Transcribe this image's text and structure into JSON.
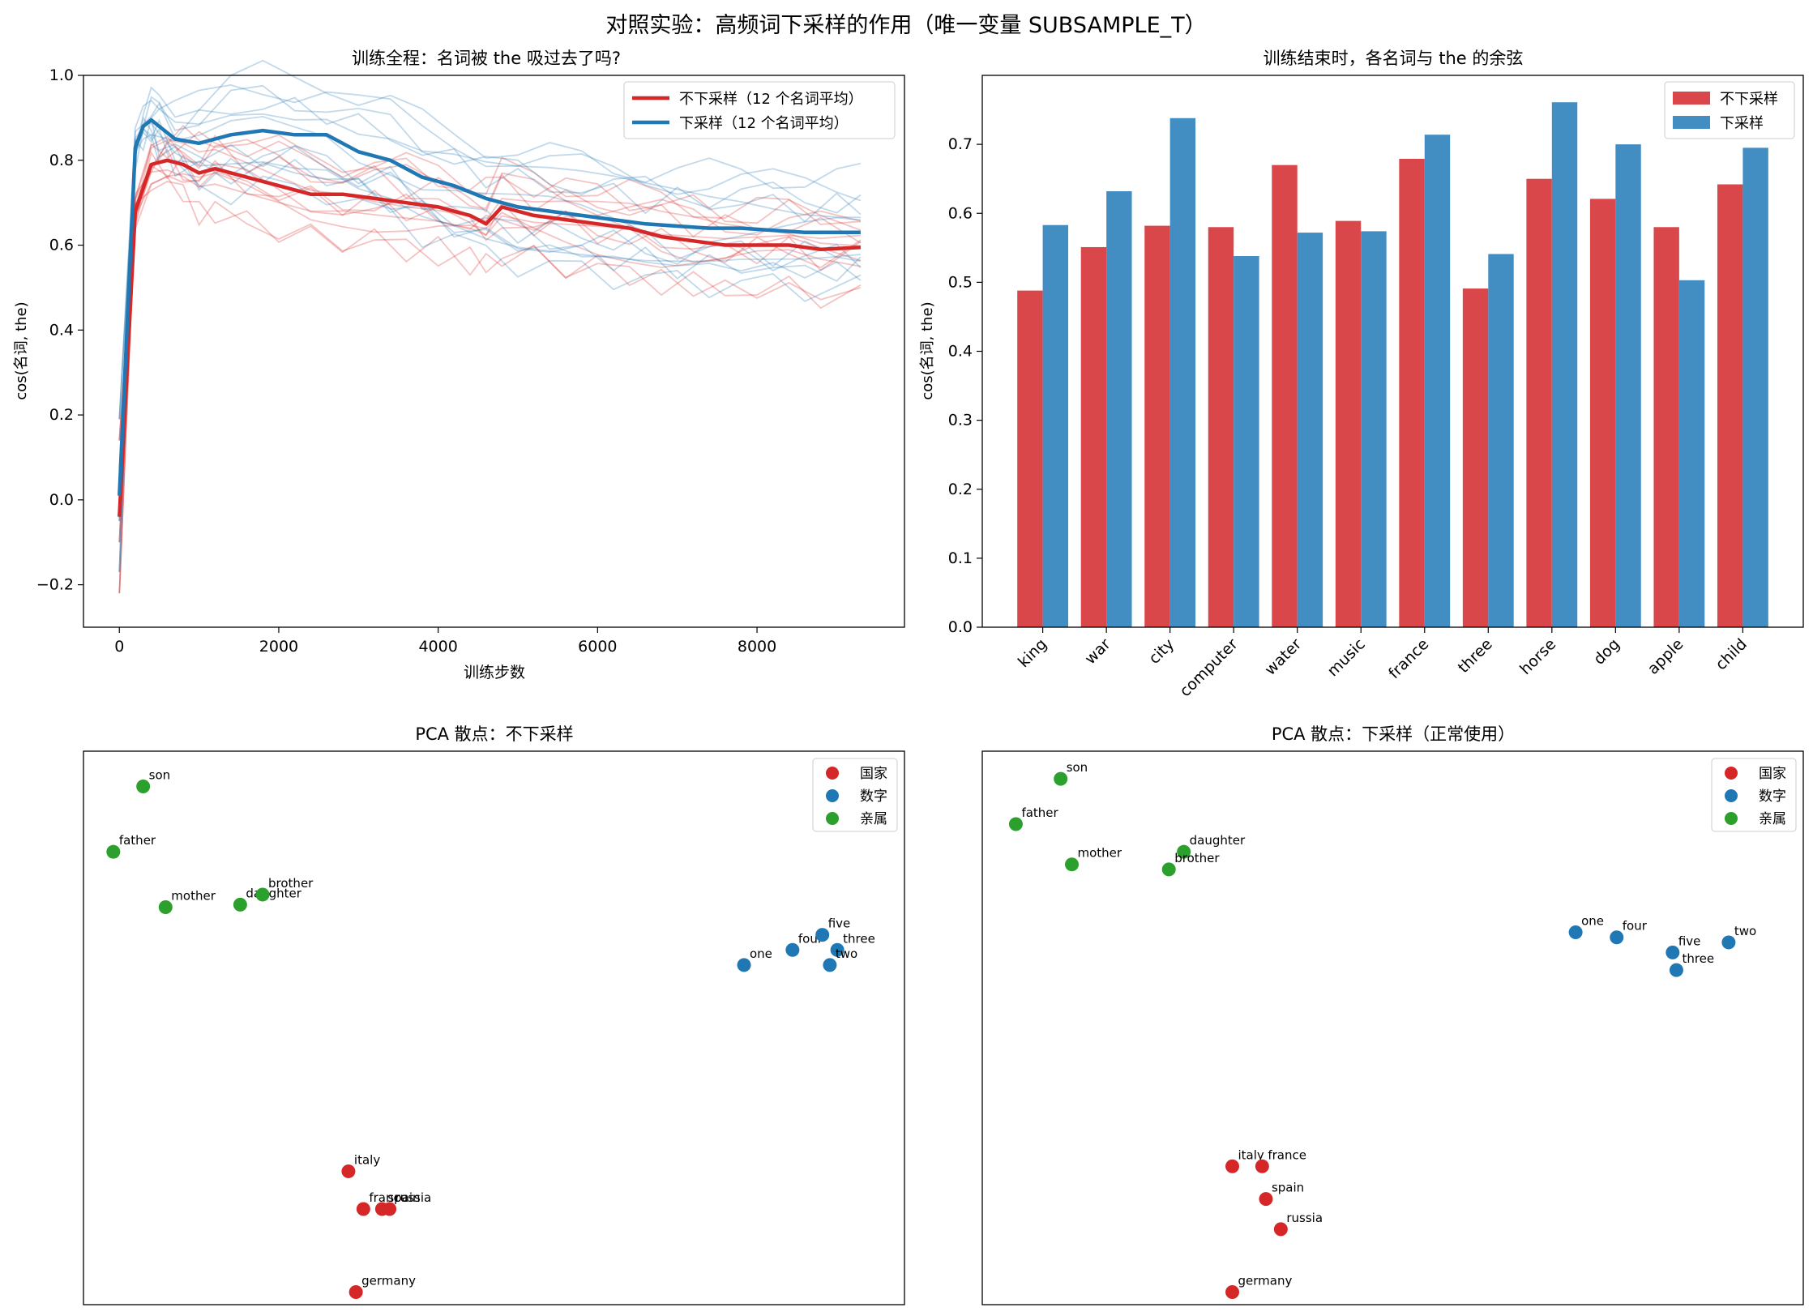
{
  "suptitle": "对照实验：高频词下采样的作用（唯一变量 SUBSAMPLE_T）",
  "colors": {
    "no_subsample": "#d62728",
    "subsample": "#1f77b4",
    "bar_no_subsample": "#d9474a",
    "bar_subsample": "#428dc2",
    "country": "#d62728",
    "number": "#1f77b4",
    "kin": "#2ca02c"
  },
  "chart_data": [
    {
      "type": "line",
      "title": "训练全程：名词被 the 吸过去了吗?",
      "xlabel": "训练步数",
      "ylabel": "cos(名词, the)",
      "xlim": [
        -450,
        9850
      ],
      "ylim": [
        -0.3,
        1.0
      ],
      "xticks": [
        0,
        2000,
        4000,
        6000,
        8000
      ],
      "xtick_labels": [
        "0",
        "2000",
        "4000",
        "6000",
        "8000"
      ],
      "yticks": [
        -0.2,
        0.0,
        0.2,
        0.4,
        0.6,
        0.8,
        1.0
      ],
      "ytick_labels": [
        "−0.2",
        "0.0",
        "0.2",
        "0.4",
        "0.6",
        "0.8",
        "1.0"
      ],
      "grid": false,
      "legend": "top-right",
      "legend_entries": [
        "不下采样（12 个名词平均）",
        "下采样（12 个名词平均）"
      ],
      "series": [
        {
          "name": "不下采样（12 个名词平均）",
          "x": [
            0,
            200,
            400,
            600,
            800,
            1000,
            1200,
            1600,
            2000,
            2400,
            2800,
            3200,
            3600,
            4000,
            4400,
            4600,
            4800,
            5200,
            5600,
            6000,
            6400,
            6800,
            7200,
            7600,
            8000,
            8400,
            8800,
            9300
          ],
          "values": [
            -0.04,
            0.68,
            0.79,
            0.8,
            0.79,
            0.77,
            0.78,
            0.76,
            0.74,
            0.72,
            0.72,
            0.71,
            0.7,
            0.69,
            0.67,
            0.65,
            0.69,
            0.67,
            0.66,
            0.65,
            0.64,
            0.62,
            0.61,
            0.6,
            0.6,
            0.6,
            0.59,
            0.595
          ]
        },
        {
          "name": "下采样（12 个名词平均）",
          "x": [
            0,
            200,
            300,
            400,
            500,
            700,
            1000,
            1400,
            1800,
            2200,
            2600,
            3000,
            3400,
            3800,
            4200,
            4600,
            5000,
            5400,
            5800,
            6200,
            6600,
            7000,
            7400,
            7800,
            8200,
            8600,
            9000,
            9300
          ],
          "values": [
            0.01,
            0.83,
            0.88,
            0.895,
            0.88,
            0.85,
            0.84,
            0.86,
            0.87,
            0.86,
            0.86,
            0.82,
            0.8,
            0.76,
            0.74,
            0.71,
            0.69,
            0.68,
            0.67,
            0.66,
            0.65,
            0.645,
            0.64,
            0.64,
            0.635,
            0.63,
            0.63,
            0.63
          ]
        }
      ],
      "faint_series_end_values": {
        "不下采样": [
          0.49,
          0.55,
          0.58,
          0.58,
          0.67,
          0.59,
          0.68,
          0.49,
          0.65,
          0.62,
          0.58,
          0.64
        ],
        "下采样": [
          0.58,
          0.63,
          0.74,
          0.54,
          0.57,
          0.57,
          0.71,
          0.54,
          0.76,
          0.7,
          0.5,
          0.69
        ]
      }
    },
    {
      "type": "bar",
      "title": "训练结束时，各名词与 the 的余弦",
      "xlabel": "",
      "ylabel": "cos(名词, the)",
      "ylim": [
        0.0,
        0.8
      ],
      "yticks": [
        0.0,
        0.1,
        0.2,
        0.3,
        0.4,
        0.5,
        0.6,
        0.7
      ],
      "ytick_labels": [
        "0.0",
        "0.1",
        "0.2",
        "0.3",
        "0.4",
        "0.5",
        "0.6",
        "0.7"
      ],
      "grid": false,
      "legend": "top-right",
      "categories": [
        "king",
        "war",
        "city",
        "computer",
        "water",
        "music",
        "france",
        "three",
        "horse",
        "dog",
        "apple",
        "child"
      ],
      "series": [
        {
          "name": "不下采样",
          "values": [
            0.488,
            0.551,
            0.582,
            0.58,
            0.67,
            0.589,
            0.679,
            0.491,
            0.65,
            0.621,
            0.58,
            0.642
          ]
        },
        {
          "name": "下采样",
          "values": [
            0.583,
            0.632,
            0.738,
            0.538,
            0.572,
            0.574,
            0.714,
            0.541,
            0.761,
            0.7,
            0.503,
            0.695
          ]
        }
      ]
    },
    {
      "type": "scatter",
      "title": "PCA 散点：不下采样",
      "legend": "top-right",
      "legend_entries": [
        "国家",
        "数字",
        "亲属"
      ],
      "axes_ticks": false,
      "xlim": [
        -1.0,
        10.0
      ],
      "ylim": [
        -10.5,
        0.5
      ],
      "points": [
        {
          "label": "son",
          "group": "亲属",
          "x": -0.2,
          "y": -0.2
        },
        {
          "label": "father",
          "group": "亲属",
          "x": -0.6,
          "y": -1.5
        },
        {
          "label": "mother",
          "group": "亲属",
          "x": 0.1,
          "y": -2.6
        },
        {
          "label": "daughter",
          "group": "亲属",
          "x": 1.1,
          "y": -2.55
        },
        {
          "label": "brother",
          "group": "亲属",
          "x": 1.4,
          "y": -2.35
        },
        {
          "label": "one",
          "group": "数字",
          "x": 7.85,
          "y": -3.75
        },
        {
          "label": "four",
          "group": "数字",
          "x": 8.5,
          "y": -3.45
        },
        {
          "label": "five",
          "group": "数字",
          "x": 8.9,
          "y": -3.15
        },
        {
          "label": "three",
          "group": "数字",
          "x": 9.1,
          "y": -3.45
        },
        {
          "label": "two",
          "group": "数字",
          "x": 9.0,
          "y": -3.75
        },
        {
          "label": "italy",
          "group": "国家",
          "x": 2.55,
          "y": -7.85
        },
        {
          "label": "france",
          "group": "国家",
          "x": 2.75,
          "y": -8.6
        },
        {
          "label": "spain",
          "group": "国家",
          "x": 3.0,
          "y": -8.6
        },
        {
          "label": "russia",
          "group": "国家",
          "x": 3.1,
          "y": -8.6
        },
        {
          "label": "germany",
          "group": "国家",
          "x": 2.65,
          "y": -10.25
        }
      ]
    },
    {
      "type": "scatter",
      "title": "PCA 散点：下采样（正常使用）",
      "legend": "top-right",
      "legend_entries": [
        "国家",
        "数字",
        "亲属"
      ],
      "axes_ticks": false,
      "xlim": [
        -1.0,
        10.0
      ],
      "ylim": [
        -10.5,
        0.5
      ],
      "points": [
        {
          "label": "son",
          "group": "亲属",
          "x": 0.05,
          "y": -0.05
        },
        {
          "label": "father",
          "group": "亲属",
          "x": -0.55,
          "y": -0.95
        },
        {
          "label": "daughter",
          "group": "亲属",
          "x": 1.7,
          "y": -1.5
        },
        {
          "label": "mother",
          "group": "亲属",
          "x": 0.2,
          "y": -1.75
        },
        {
          "label": "brother",
          "group": "亲属",
          "x": 1.5,
          "y": -1.85
        },
        {
          "label": "one",
          "group": "数字",
          "x": 6.95,
          "y": -3.1
        },
        {
          "label": "four",
          "group": "数字",
          "x": 7.5,
          "y": -3.2
        },
        {
          "label": "two",
          "group": "数字",
          "x": 9.0,
          "y": -3.3
        },
        {
          "label": "five",
          "group": "数字",
          "x": 8.25,
          "y": -3.5
        },
        {
          "label": "three",
          "group": "数字",
          "x": 8.3,
          "y": -3.85
        },
        {
          "label": "italy",
          "group": "国家",
          "x": 2.35,
          "y": -7.75
        },
        {
          "label": "france",
          "group": "国家",
          "x": 2.75,
          "y": -7.75
        },
        {
          "label": "spain",
          "group": "国家",
          "x": 2.8,
          "y": -8.4
        },
        {
          "label": "russia",
          "group": "国家",
          "x": 3.0,
          "y": -9.0
        },
        {
          "label": "germany",
          "group": "国家",
          "x": 2.35,
          "y": -10.25
        }
      ]
    }
  ]
}
